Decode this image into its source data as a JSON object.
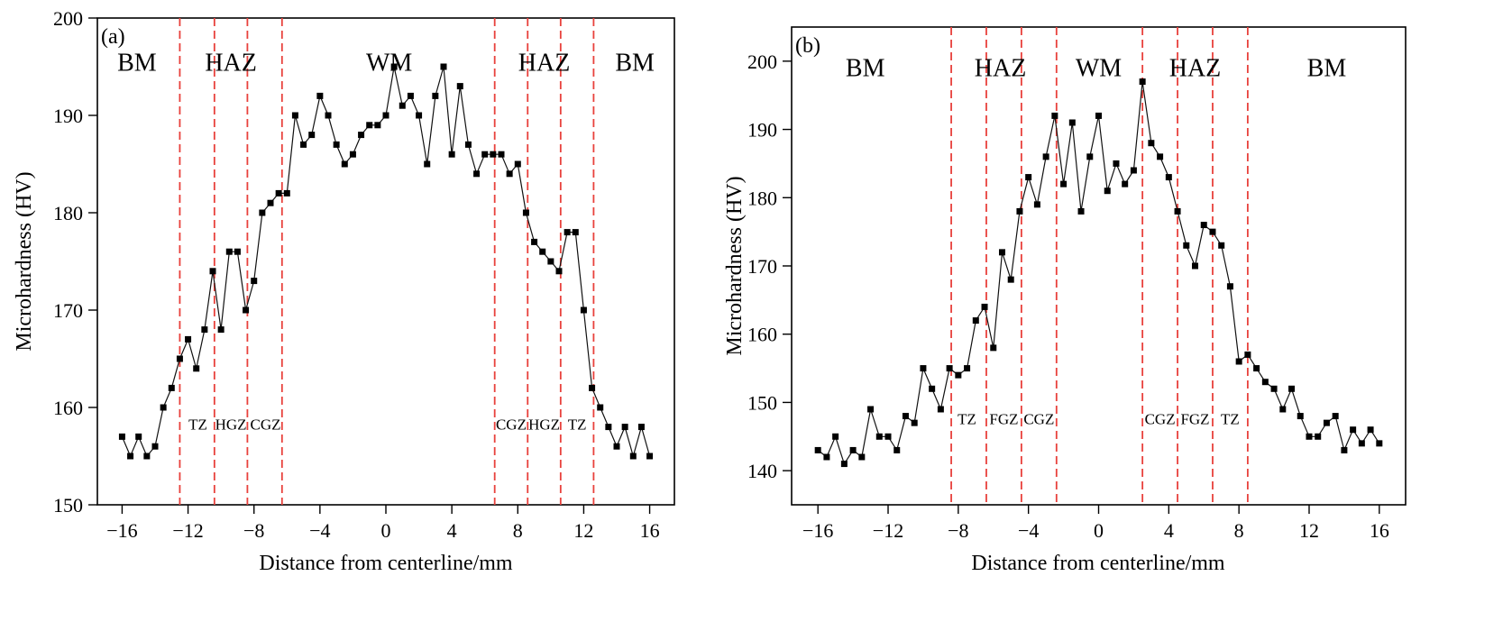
{
  "colors": {
    "series": "#111111",
    "marker": "#000000",
    "boundary": "#e8413c",
    "axes": "#000000"
  },
  "chart_data": [
    {
      "type": "line",
      "panel_label": "(a)",
      "xlabel": "Distance from centerline/mm",
      "ylabel": "Microhardness (HV)",
      "xlim": [
        -17.5,
        17.5
      ],
      "ylim": [
        150,
        200
      ],
      "xticks": [
        -16,
        -12,
        -8,
        -4,
        0,
        4,
        8,
        12,
        16
      ],
      "xtick_labels": [
        "−16",
        "−12",
        "−8",
        "−4",
        "0",
        "4",
        "8",
        "12",
        "16"
      ],
      "yticks": [
        150,
        160,
        170,
        180,
        190,
        200
      ],
      "ytick_labels": [
        "150",
        "160",
        "170",
        "180",
        "190",
        "200"
      ],
      "boundaries": [
        -12.5,
        -10.4,
        -8.4,
        -6.3,
        6.6,
        8.6,
        10.6,
        12.6
      ],
      "regions": [
        {
          "text": "BM",
          "x": -15.1,
          "y": 195.5
        },
        {
          "text": "HAZ",
          "x": -9.4,
          "y": 195.5
        },
        {
          "text": "WM",
          "x": 0.2,
          "y": 195.5
        },
        {
          "text": "HAZ",
          "x": 9.6,
          "y": 195.5
        },
        {
          "text": "BM",
          "x": 15.1,
          "y": 195.5
        }
      ],
      "subzones": [
        {
          "text": "TZ",
          "x": -11.4,
          "y": 158.3
        },
        {
          "text": "HGZ",
          "x": -9.4,
          "y": 158.3
        },
        {
          "text": "CGZ",
          "x": -7.3,
          "y": 158.3
        },
        {
          "text": "CGZ",
          "x": 7.6,
          "y": 158.3
        },
        {
          "text": "HGZ",
          "x": 9.6,
          "y": 158.3
        },
        {
          "text": "TZ",
          "x": 11.6,
          "y": 158.3
        }
      ],
      "x": [
        -16,
        -15.5,
        -15,
        -14.5,
        -14,
        -13.5,
        -13,
        -12.5,
        -12,
        -11.5,
        -11,
        -10.5,
        -10,
        -9.5,
        -9,
        -8.5,
        -8,
        -7.5,
        -7,
        -6.5,
        -6,
        -5.5,
        -5,
        -4.5,
        -4,
        -3.5,
        -3,
        -2.5,
        -2,
        -1.5,
        -1,
        -0.5,
        0,
        0.5,
        1,
        1.5,
        2,
        2.5,
        3,
        3.5,
        4,
        4.5,
        5,
        5.5,
        6,
        6.5,
        7,
        7.5,
        8,
        8.5,
        9,
        9.5,
        10,
        10.5,
        11,
        11.5,
        12,
        12.5,
        13,
        13.5,
        14,
        14.5,
        15,
        15.5,
        16
      ],
      "series": [
        {
          "values": [
            157,
            155,
            157,
            155,
            156,
            160,
            162,
            165,
            167,
            164,
            168,
            174,
            168,
            176,
            176,
            170,
            173,
            180,
            181,
            182,
            182,
            190,
            187,
            188,
            192,
            190,
            187,
            185,
            186,
            188,
            189,
            189,
            190,
            195,
            191,
            192,
            190,
            185,
            192,
            195,
            186,
            193,
            187,
            184,
            186,
            186,
            186,
            184,
            185,
            180,
            177,
            176,
            175,
            174,
            178,
            178,
            170,
            162,
            160,
            158,
            156,
            158,
            155,
            158,
            155
          ]
        }
      ]
    },
    {
      "type": "line",
      "panel_label": "(b)",
      "xlabel": "Distance from centerline/mm",
      "ylabel": "Microhardness (HV)",
      "xlim": [
        -17.5,
        17.5
      ],
      "ylim": [
        135,
        205
      ],
      "xticks": [
        -16,
        -12,
        -8,
        -4,
        0,
        4,
        8,
        12,
        16
      ],
      "xtick_labels": [
        "−16",
        "−12",
        "−8",
        "−4",
        "0",
        "4",
        "8",
        "12",
        "16"
      ],
      "yticks": [
        140,
        150,
        160,
        170,
        180,
        190,
        200
      ],
      "ytick_labels": [
        "140",
        "150",
        "160",
        "170",
        "180",
        "190",
        "200"
      ],
      "boundaries": [
        -8.4,
        -6.4,
        -4.4,
        -2.4,
        2.5,
        4.5,
        6.5,
        8.5
      ],
      "regions": [
        {
          "text": "BM",
          "x": -13.3,
          "y": 199.1
        },
        {
          "text": "HAZ",
          "x": -5.6,
          "y": 199.1
        },
        {
          "text": "WM",
          "x": 0.0,
          "y": 199.1
        },
        {
          "text": "HAZ",
          "x": 5.5,
          "y": 199.1
        },
        {
          "text": "BM",
          "x": 13.0,
          "y": 199.1
        }
      ],
      "subzones": [
        {
          "text": "TZ",
          "x": -7.5,
          "y": 147.6
        },
        {
          "text": "FGZ",
          "x": -5.4,
          "y": 147.6
        },
        {
          "text": "CGZ",
          "x": -3.4,
          "y": 147.6
        },
        {
          "text": "CGZ",
          "x": 3.5,
          "y": 147.6
        },
        {
          "text": "FGZ",
          "x": 5.5,
          "y": 147.6
        },
        {
          "text": "TZ",
          "x": 7.5,
          "y": 147.6
        }
      ],
      "x": [
        -16,
        -15.5,
        -15,
        -14.5,
        -14,
        -13.5,
        -13,
        -12.5,
        -12,
        -11.5,
        -11,
        -10.5,
        -10,
        -9.5,
        -9,
        -8.5,
        -8,
        -7.5,
        -7,
        -6.5,
        -6,
        -5.5,
        -5,
        -4.5,
        -4,
        -3.5,
        -3,
        -2.5,
        -2,
        -1.5,
        -1,
        -0.5,
        0,
        0.5,
        1,
        1.5,
        2,
        2.5,
        3,
        3.5,
        4,
        4.5,
        5,
        5.5,
        6,
        6.5,
        7,
        7.5,
        8,
        8.5,
        9,
        9.5,
        10,
        10.5,
        11,
        11.5,
        12,
        12.5,
        13,
        13.5,
        14,
        14.5,
        15,
        15.5,
        16
      ],
      "series": [
        {
          "values": [
            143,
            142,
            145,
            141,
            143,
            142,
            149,
            145,
            145,
            143,
            148,
            147,
            155,
            152,
            149,
            155,
            154,
            155,
            162,
            164,
            158,
            172,
            168,
            178,
            183,
            179,
            186,
            192,
            182,
            191,
            178,
            186,
            192,
            181,
            185,
            182,
            184,
            197,
            188,
            186,
            183,
            178,
            173,
            170,
            176,
            175,
            173,
            167,
            156,
            157,
            155,
            153,
            152,
            149,
            152,
            148,
            145,
            145,
            147,
            148,
            143,
            146,
            144,
            146,
            144
          ]
        }
      ]
    }
  ]
}
